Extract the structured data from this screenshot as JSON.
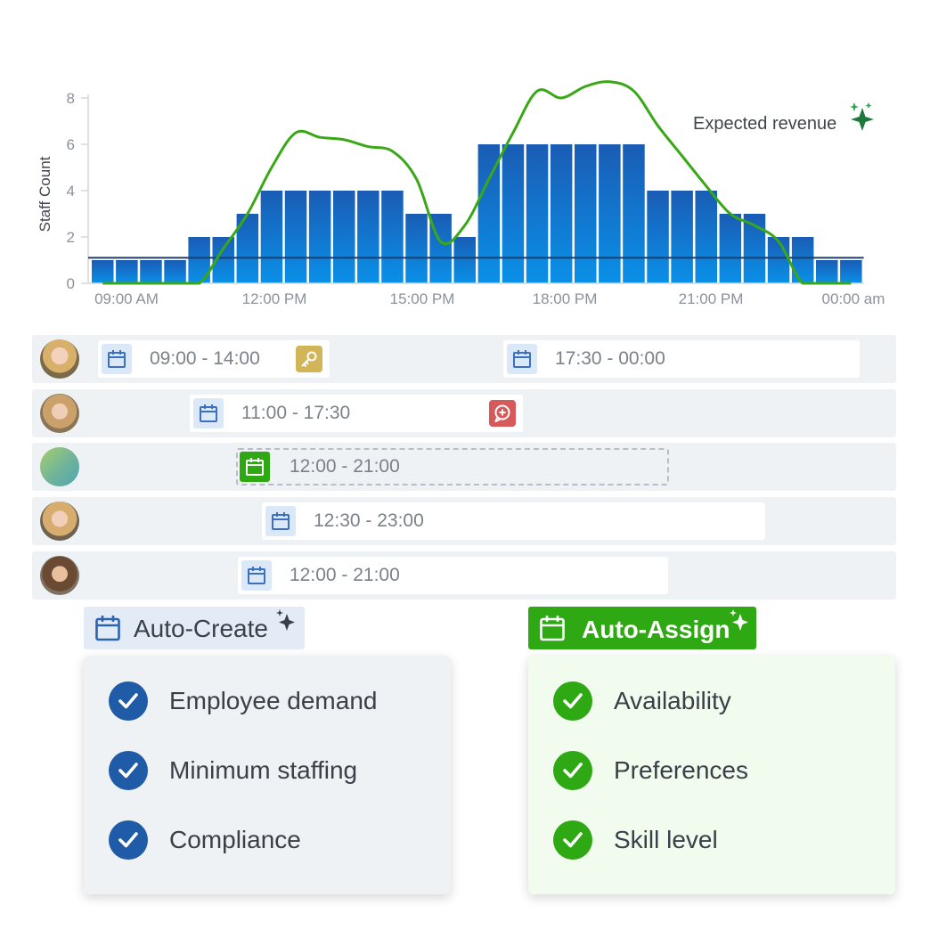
{
  "chart_data": {
    "type": "bar",
    "ylabel": "Staff Count",
    "ylim": [
      0,
      8
    ],
    "yticks": [
      "0",
      "2",
      "4",
      "6",
      "8"
    ],
    "xtick_labels": [
      "09:00 AM",
      "12:00 PM",
      "15:00 PM",
      "18:00 PM",
      "21:00 PM",
      "00:00 am"
    ],
    "values": [
      1,
      1,
      1,
      1,
      2,
      2,
      3,
      4,
      4,
      4,
      4,
      4,
      4,
      3,
      3,
      2,
      6,
      6,
      6,
      6,
      6,
      6,
      6,
      4,
      4,
      4,
      3,
      3,
      2,
      2,
      1,
      1
    ],
    "minimum_staffing": 1.1,
    "series": [
      {
        "name": "Expected revenue",
        "values": [
          0,
          0,
          0,
          0,
          0,
          1.5,
          3,
          5,
          6.5,
          6.3,
          6.2,
          5.9,
          5.7,
          4.5,
          1.8,
          2.5,
          4.5,
          6.5,
          8.3,
          8,
          8.5,
          8.7,
          8.3,
          6.8,
          5.5,
          4.2,
          3.0,
          2.5,
          1.8,
          0,
          0,
          0
        ]
      }
    ],
    "colors": {
      "bar_top": "#1a60b8",
      "bar_bottom": "#0a8fe6",
      "line": "#3aa717",
      "min_line": "#1d3f6e"
    }
  },
  "schedule": [
    {
      "avatar": "avatar-1",
      "shifts": [
        {
          "time": "09:00 - 14:00",
          "badge": "key-icon"
        },
        {
          "time": "17:30 - 00:00"
        }
      ]
    },
    {
      "avatar": "avatar-2",
      "shifts": [
        {
          "time": "11:00 - 17:30",
          "badge": "chat-plus-icon"
        }
      ]
    },
    {
      "avatar": "open-shift",
      "shifts": [
        {
          "time": "12:00 - 21:00"
        }
      ]
    },
    {
      "avatar": "avatar-3",
      "shifts": [
        {
          "time": "12:30 - 23:00"
        }
      ]
    },
    {
      "avatar": "avatar-4",
      "shifts": [
        {
          "time": "12:00 - 21:00"
        }
      ]
    }
  ],
  "auto_create": {
    "label": "Auto-Create",
    "items": [
      "Employee demand",
      "Minimum staffing",
      "Compliance"
    ]
  },
  "auto_assign": {
    "label": "Auto-Assign",
    "items": [
      "Availability",
      "Preferences",
      "Skill level"
    ]
  },
  "colors": {
    "blue": "#1f5eaa",
    "green": "#2ea813",
    "panel_blue_bg": "#eef2f5",
    "panel_green_bg": "#f2fcee"
  }
}
